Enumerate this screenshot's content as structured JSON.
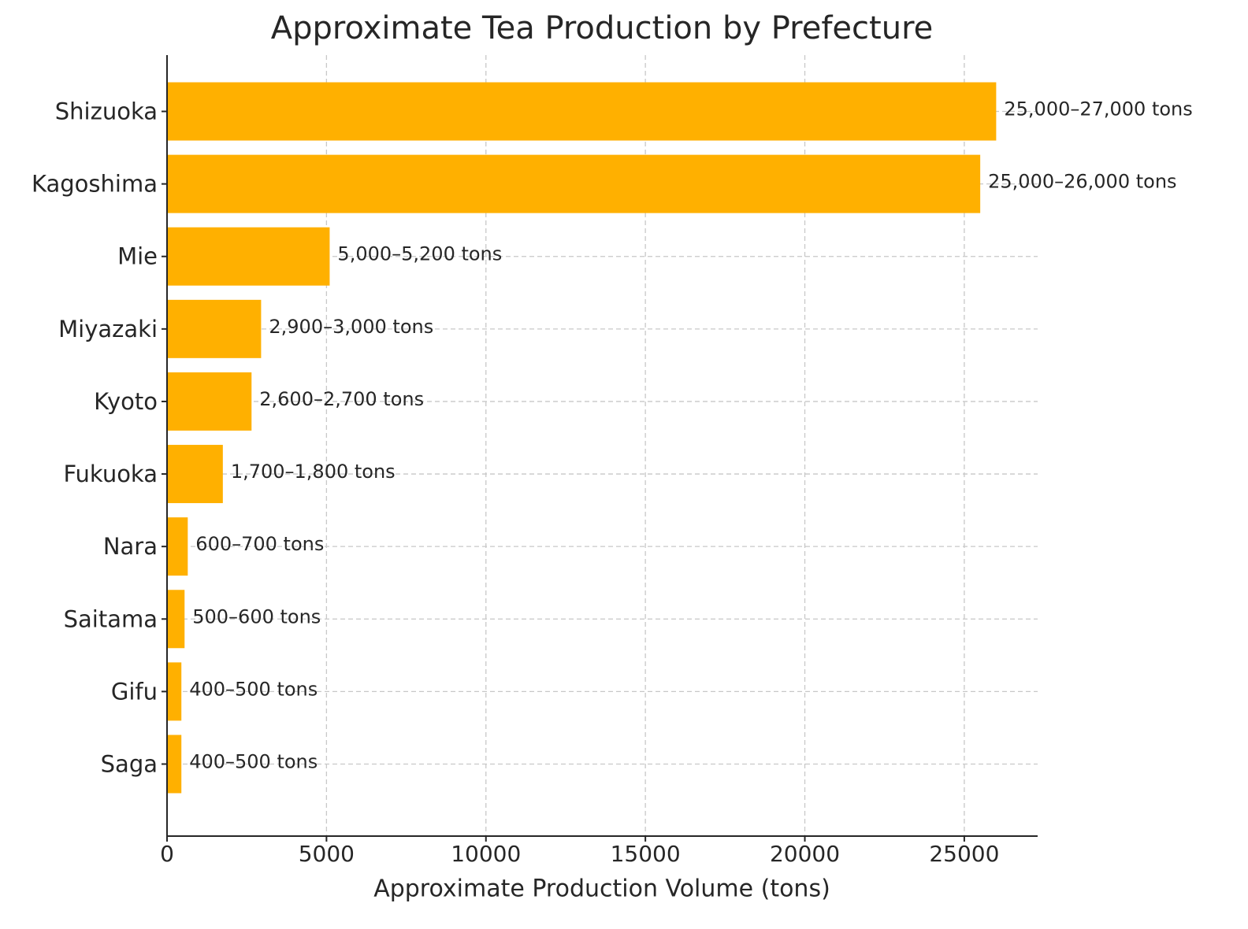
{
  "chart_data": {
    "type": "barh",
    "title": "Approximate Tea Production by Prefecture",
    "x_label": "Approximate Production Volume (tons)",
    "categories": [
      "Shizuoka",
      "Kagoshima",
      "Mie",
      "Miyazaki",
      "Kyoto",
      "Fukuoka",
      "Nara",
      "Saitama",
      "Gifu",
      "Saga"
    ],
    "values": [
      26000,
      25500,
      5100,
      2950,
      2650,
      1750,
      650,
      550,
      450,
      450
    ],
    "value_labels": [
      "25,000–27,000 tons",
      "25,000–26,000 tons",
      "5,000–5,200 tons",
      "2,900–3,000 tons",
      "2,600–2,700 tons",
      "1,700–1,800 tons",
      "600–700 tons",
      "500–600 tons",
      "400–500 tons",
      "400–500 tons"
    ],
    "color": "#ffb000",
    "xlim": [
      0,
      27300
    ],
    "xticks": [
      0,
      5000,
      10000,
      15000,
      20000,
      25000
    ],
    "grid": true
  }
}
